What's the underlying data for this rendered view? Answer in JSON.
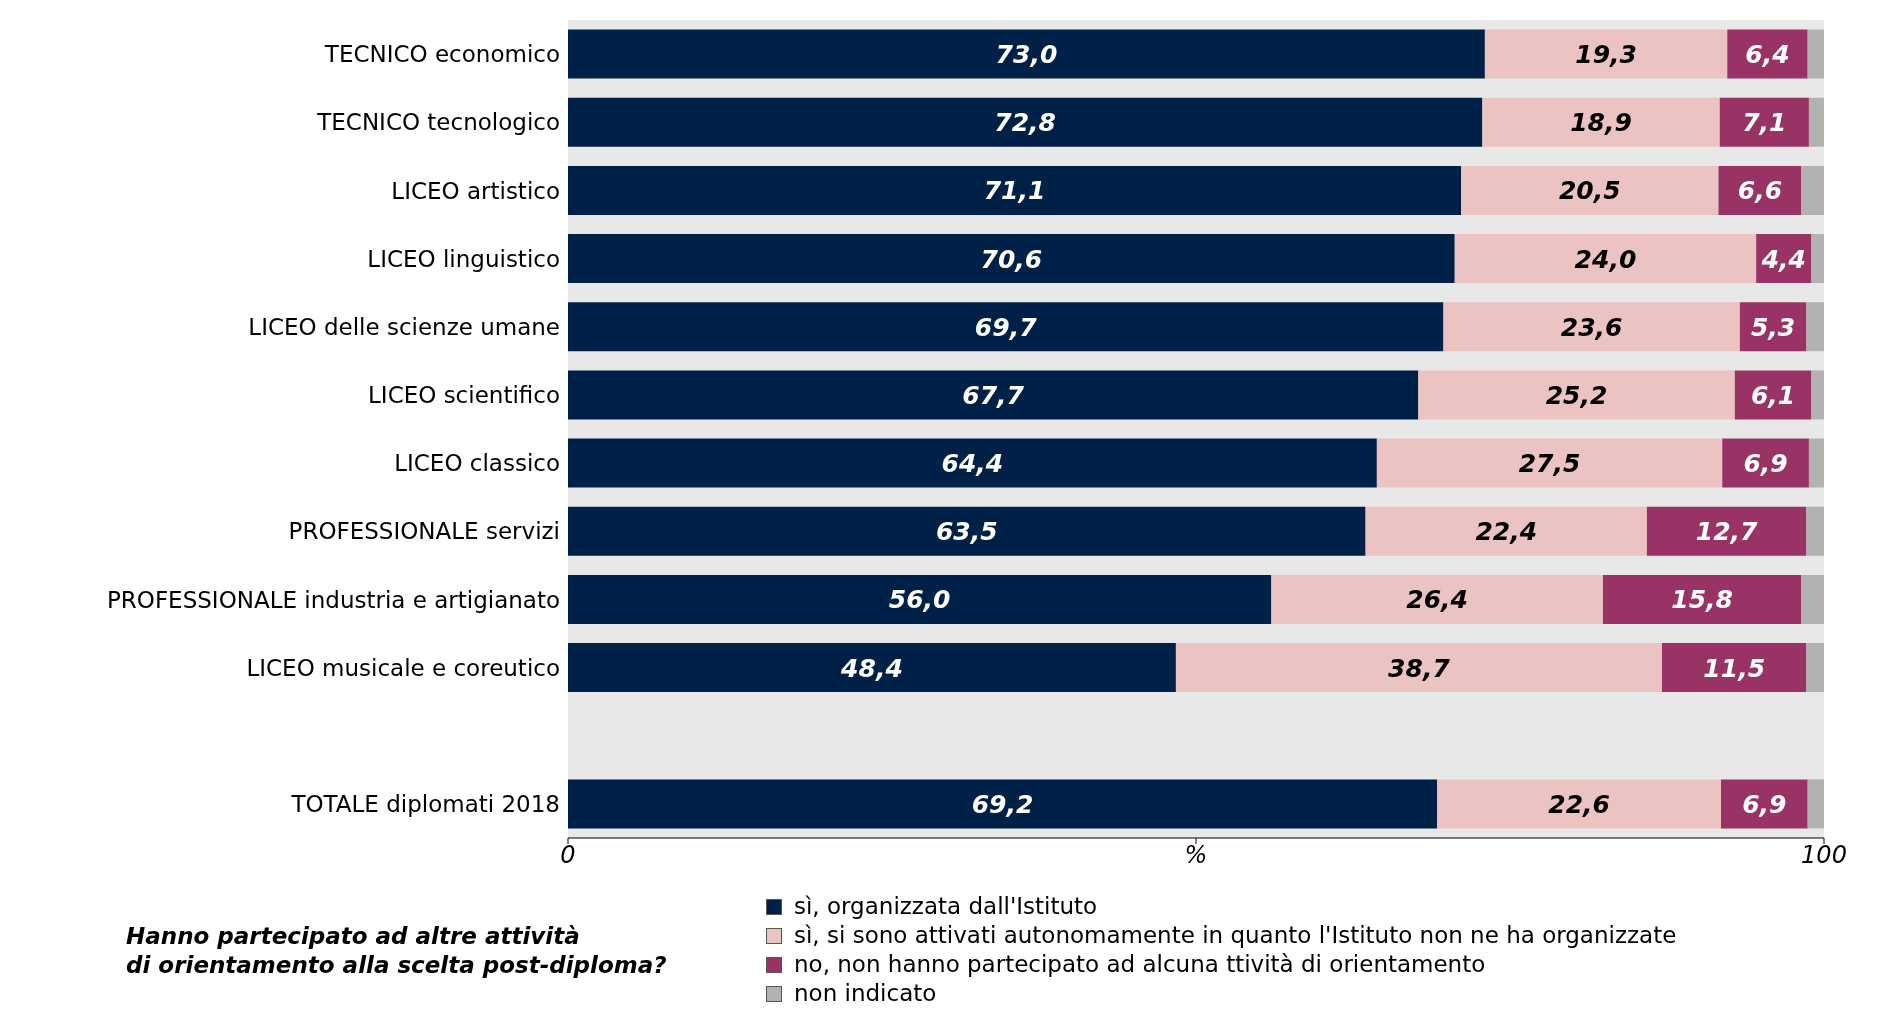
{
  "chart_data": {
    "type": "bar",
    "orientation": "horizontal",
    "stacked": true,
    "categories": [
      "TECNICO economico",
      "TECNICO tecnologico",
      "LICEO artistico",
      "LICEO linguistico",
      "LICEO delle scienze umane",
      "LICEO scientifico",
      "LICEO classico",
      "PROFESSIONALE servizi",
      "PROFESSIONALE industria e artigianato",
      "LICEO musicale e coreutico",
      null,
      "TOTALE diplomati 2018"
    ],
    "series": [
      {
        "name": "sì, organizzata dall'Istituto",
        "color": "#002147",
        "values": [
          73.0,
          72.8,
          71.1,
          70.6,
          69.7,
          67.7,
          64.4,
          63.5,
          56.0,
          48.4,
          null,
          69.2
        ],
        "value_labels": [
          "73,0",
          "72,8",
          "71,1",
          "70,6",
          "69,7",
          "67,7",
          "64,4",
          "63,5",
          "56,0",
          "48,4",
          null,
          "69,2"
        ]
      },
      {
        "name": "sì, si sono attivati autonomamente in quanto l'Istituto non ne ha organizzate",
        "color": "#ebc3c3",
        "values": [
          19.3,
          18.9,
          20.5,
          24.0,
          23.6,
          25.2,
          27.5,
          22.4,
          26.4,
          38.7,
          null,
          22.6
        ],
        "value_labels": [
          "19,3",
          "18,9",
          "20,5",
          "24,0",
          "23,6",
          "25,2",
          "27,5",
          "22,4",
          "26,4",
          "38,7",
          null,
          "22,6"
        ]
      },
      {
        "name": "no, non hanno partecipato ad alcuna ttività di orientamento",
        "color": "#993366",
        "values": [
          6.4,
          7.1,
          6.6,
          4.4,
          5.3,
          6.1,
          6.9,
          12.7,
          15.8,
          11.5,
          null,
          6.9
        ],
        "value_labels": [
          "6,4",
          "7,1",
          "6,6",
          "4,4",
          "5,3",
          "6,1",
          "6,9",
          "12,7",
          "15,8",
          "11,5",
          null,
          "6,9"
        ]
      },
      {
        "name": "non indicato",
        "color": "#b2b2b2",
        "values": [
          1.3,
          1.2,
          1.8,
          1.0,
          1.4,
          1.0,
          1.2,
          1.4,
          1.8,
          1.4,
          null,
          1.3
        ]
      }
    ],
    "xlabel": "%",
    "xlim": [
      0,
      100
    ],
    "xticks": [
      0,
      {
        "value": 50,
        "label": null
      },
      100
    ],
    "grid": false,
    "legend": "bottom",
    "annotations": [
      "Hanno partecipato ad altre attività\ndi orientamento alla scelta post-diploma?"
    ]
  }
}
